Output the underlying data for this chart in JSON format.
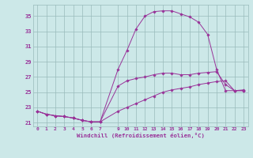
{
  "xlabel": "Windchill (Refroidissement éolien,°C)",
  "background_color": "#cce8e8",
  "grid_color": "#99bbbb",
  "line_color": "#993399",
  "xlim": [
    -0.5,
    23.5
  ],
  "ylim": [
    20.5,
    36.5
  ],
  "yticks": [
    21,
    23,
    25,
    27,
    29,
    31,
    33,
    35
  ],
  "xticks": [
    0,
    1,
    2,
    3,
    4,
    5,
    6,
    7,
    9,
    10,
    11,
    12,
    13,
    14,
    15,
    16,
    17,
    18,
    19,
    20,
    21,
    22,
    23
  ],
  "series": [
    {
      "x": [
        0,
        1,
        2,
        3,
        4,
        5,
        6,
        7,
        9,
        10,
        11,
        12,
        13,
        14,
        15,
        16,
        17,
        18,
        19,
        20,
        21,
        22,
        23
      ],
      "y": [
        22.5,
        22.1,
        21.9,
        21.8,
        21.6,
        21.3,
        21.1,
        21.1,
        22.5,
        23.0,
        23.5,
        24.0,
        24.5,
        25.0,
        25.3,
        25.5,
        25.7,
        26.0,
        26.2,
        26.4,
        26.5,
        25.2,
        25.3
      ]
    },
    {
      "x": [
        0,
        1,
        2,
        3,
        4,
        5,
        6,
        7,
        9,
        10,
        11,
        12,
        13,
        14,
        15,
        16,
        17,
        18,
        19,
        20,
        21,
        22,
        23
      ],
      "y": [
        22.5,
        22.1,
        21.9,
        21.8,
        21.6,
        21.3,
        21.1,
        21.1,
        28.0,
        30.5,
        33.3,
        35.0,
        35.6,
        35.7,
        35.7,
        35.3,
        34.9,
        34.2,
        32.6,
        28.0,
        25.2,
        25.2,
        25.2
      ]
    },
    {
      "x": [
        0,
        1,
        2,
        3,
        4,
        5,
        6,
        7,
        9,
        10,
        11,
        12,
        13,
        14,
        15,
        16,
        17,
        18,
        19,
        20,
        21,
        22,
        23
      ],
      "y": [
        22.5,
        22.1,
        21.9,
        21.8,
        21.6,
        21.3,
        21.1,
        21.1,
        25.8,
        26.5,
        26.8,
        27.0,
        27.3,
        27.5,
        27.5,
        27.3,
        27.3,
        27.5,
        27.6,
        27.7,
        26.0,
        25.2,
        25.2
      ]
    }
  ]
}
